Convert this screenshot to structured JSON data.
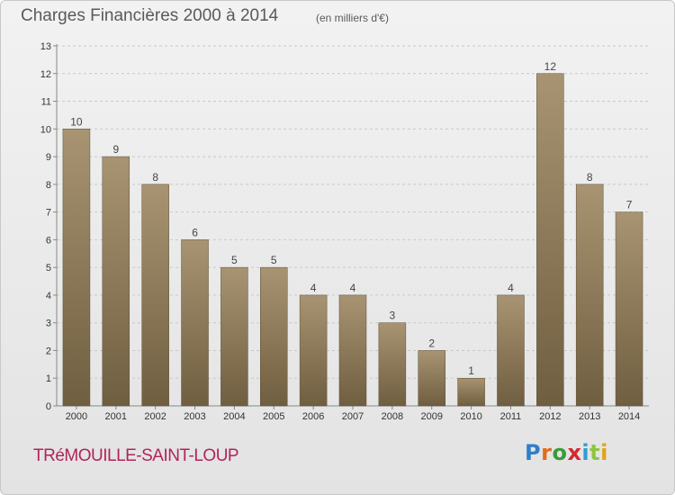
{
  "header": {
    "title": "Charges Financières 2000 à 2014",
    "subtitle": "(en milliers d'€)"
  },
  "footer": {
    "commune": "TRéMOUILLE-SAINT-LOUP",
    "logo_letters": [
      "P",
      "r",
      "o",
      "x",
      "i",
      "t",
      "i"
    ]
  },
  "colors": {
    "bar_light": "#a89472",
    "bar_dark": "#6f5e40",
    "grid": "#c9c9c9",
    "commune": "#b0245a"
  },
  "chart_data": {
    "type": "bar",
    "title": "Charges Financières 2000 à 2014",
    "subtitle": "(en milliers d'€)",
    "categories": [
      "2000",
      "2001",
      "2002",
      "2003",
      "2004",
      "2005",
      "2006",
      "2007",
      "2008",
      "2009",
      "2010",
      "2011",
      "2012",
      "2013",
      "2014"
    ],
    "values": [
      10,
      9,
      8,
      6,
      5,
      5,
      4,
      4,
      3,
      2,
      1,
      4,
      12,
      8,
      7
    ],
    "ylim": [
      0,
      13
    ],
    "yticks": [
      0,
      1,
      2,
      3,
      4,
      5,
      6,
      7,
      8,
      9,
      10,
      11,
      12,
      13
    ],
    "grid": true
  }
}
